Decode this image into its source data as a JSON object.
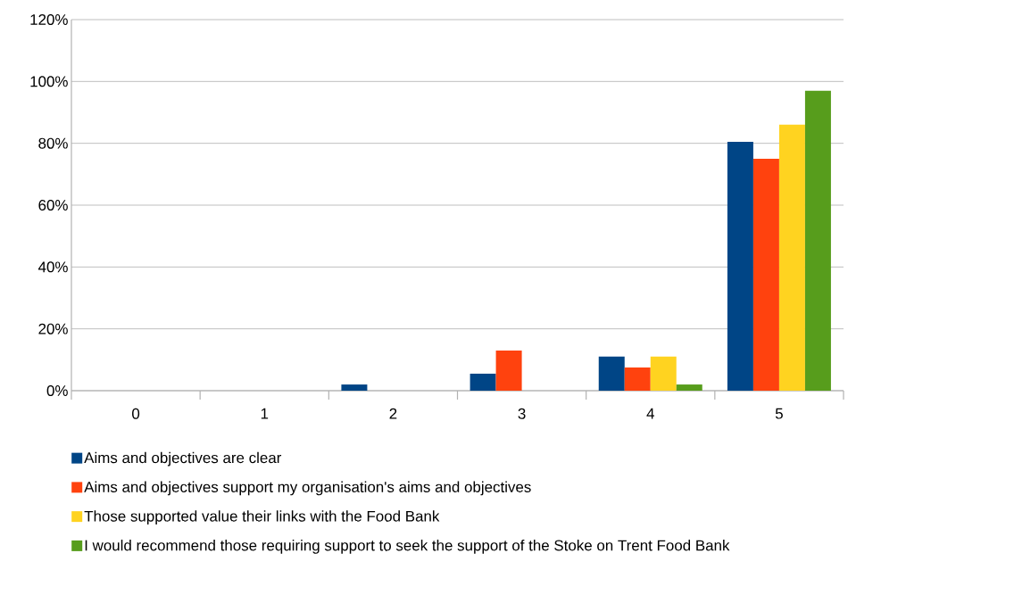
{
  "chart_data": {
    "type": "bar",
    "categories": [
      "0",
      "1",
      "2",
      "3",
      "4",
      "5"
    ],
    "series": [
      {
        "name": "Aims and objectives are clear",
        "color": "#004586",
        "values": [
          0,
          0,
          2,
          5.5,
          11,
          80.5
        ]
      },
      {
        "name": "Aims and objectives support my organisation's aims and objectives",
        "color": "#ff420e",
        "values": [
          0,
          0,
          0,
          13,
          7.5,
          75
        ]
      },
      {
        "name": "Those supported value their links with the Food Bank",
        "color": "#ffd320",
        "values": [
          0,
          0,
          0,
          0,
          11,
          86
        ]
      },
      {
        "name": "I would recommend those requiring support to seek the support of the Stoke on Trent Food Bank",
        "color": "#579d1c",
        "values": [
          0,
          0,
          0,
          0,
          2,
          97
        ]
      }
    ],
    "ylim": [
      0,
      120
    ],
    "yticks": [
      {
        "value": 0,
        "label": "0%"
      },
      {
        "value": 20,
        "label": "20%"
      },
      {
        "value": 40,
        "label": "40%"
      },
      {
        "value": 60,
        "label": "60%"
      },
      {
        "value": 80,
        "label": "80%"
      },
      {
        "value": 100,
        "label": "100%"
      },
      {
        "value": 120,
        "label": "120%"
      }
    ],
    "grid": "y",
    "legend": "bottom"
  }
}
